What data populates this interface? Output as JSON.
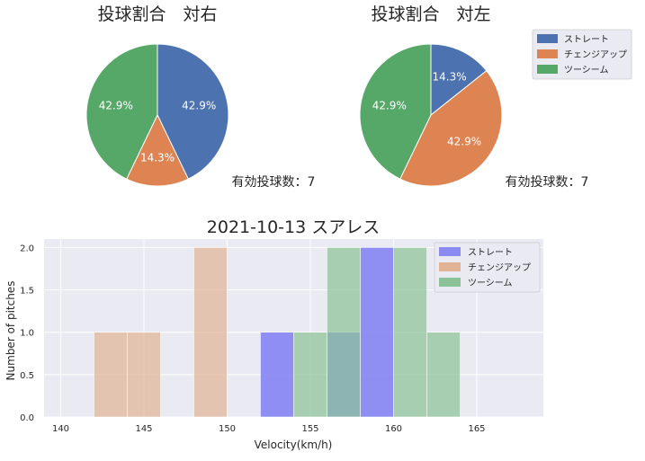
{
  "colors": {
    "blue": "#4c72b0",
    "orange": "#dd8452",
    "green": "#55a868",
    "hist_blue": "#8a8af2",
    "hist_orange": "#e0b394",
    "hist_green": "#8cc297",
    "overlap": "#4e8896",
    "axes_bg": "#eaeaf2",
    "grid": "#ffffff",
    "text": "#262626"
  },
  "chart_data": [
    {
      "type": "pie",
      "title": "投球割合　対右",
      "slices": [
        {
          "label": "ストレート",
          "value": 42.9,
          "text": "42.9%",
          "color": "#4c72b0"
        },
        {
          "label": "チェンジアップ",
          "value": 14.3,
          "text": "14.3%",
          "color": "#dd8452"
        },
        {
          "label": "ツーシーム",
          "value": 42.9,
          "text": "42.9%",
          "color": "#55a868"
        }
      ],
      "annotation": "有効投球数：7"
    },
    {
      "type": "pie",
      "title": "投球割合　対左",
      "slices": [
        {
          "label": "ストレート",
          "value": 14.3,
          "text": "14.3%",
          "color": "#4c72b0"
        },
        {
          "label": "チェンジアップ",
          "value": 42.9,
          "text": "42.9%",
          "color": "#dd8452"
        },
        {
          "label": "ツーシーム",
          "value": 42.9,
          "text": "42.9%",
          "color": "#55a868"
        }
      ],
      "annotation": "有効投球数：7",
      "legend": {
        "position": "right",
        "entries": [
          {
            "label": "ストレート",
            "color": "#4c72b0"
          },
          {
            "label": "チェンジアップ",
            "color": "#dd8452"
          },
          {
            "label": "ツーシーム",
            "color": "#55a868"
          }
        ]
      }
    },
    {
      "type": "histogram",
      "title": "2021-10-13 スアレス",
      "xlabel": "Velocity(km/h)",
      "ylabel": "Number of pitches",
      "xlim": [
        139,
        169
      ],
      "ylim": [
        0,
        2.1
      ],
      "xticks": [
        140,
        145,
        150,
        155,
        160,
        165
      ],
      "yticks": [
        0.0,
        0.5,
        1.0,
        1.5,
        2.0
      ],
      "ytick_labels": [
        "0.0",
        "0.5",
        "1.0",
        "1.5",
        "2.0"
      ],
      "grid": true,
      "legend_position": "top-right",
      "series": [
        {
          "name": "ストレート",
          "color": "#8a8af2",
          "bins": [
            {
              "x0": 152,
              "x1": 154,
              "count": 1
            },
            {
              "x0": 156,
              "x1": 158,
              "count": 1
            },
            {
              "x0": 158,
              "x1": 160,
              "count": 2
            }
          ]
        },
        {
          "name": "チェンジアップ",
          "color": "#e0b394",
          "bins": [
            {
              "x0": 142,
              "x1": 144,
              "count": 1
            },
            {
              "x0": 144,
              "x1": 146,
              "count": 1
            },
            {
              "x0": 148,
              "x1": 150,
              "count": 2
            }
          ]
        },
        {
          "name": "ツーシーム",
          "color": "#8cc297",
          "bins": [
            {
              "x0": 154,
              "x1": 156,
              "count": 1
            },
            {
              "x0": 156,
              "x1": 158,
              "count": 2
            },
            {
              "x0": 160,
              "x1": 162,
              "count": 2
            },
            {
              "x0": 162,
              "x1": 164,
              "count": 1
            }
          ]
        }
      ]
    }
  ]
}
